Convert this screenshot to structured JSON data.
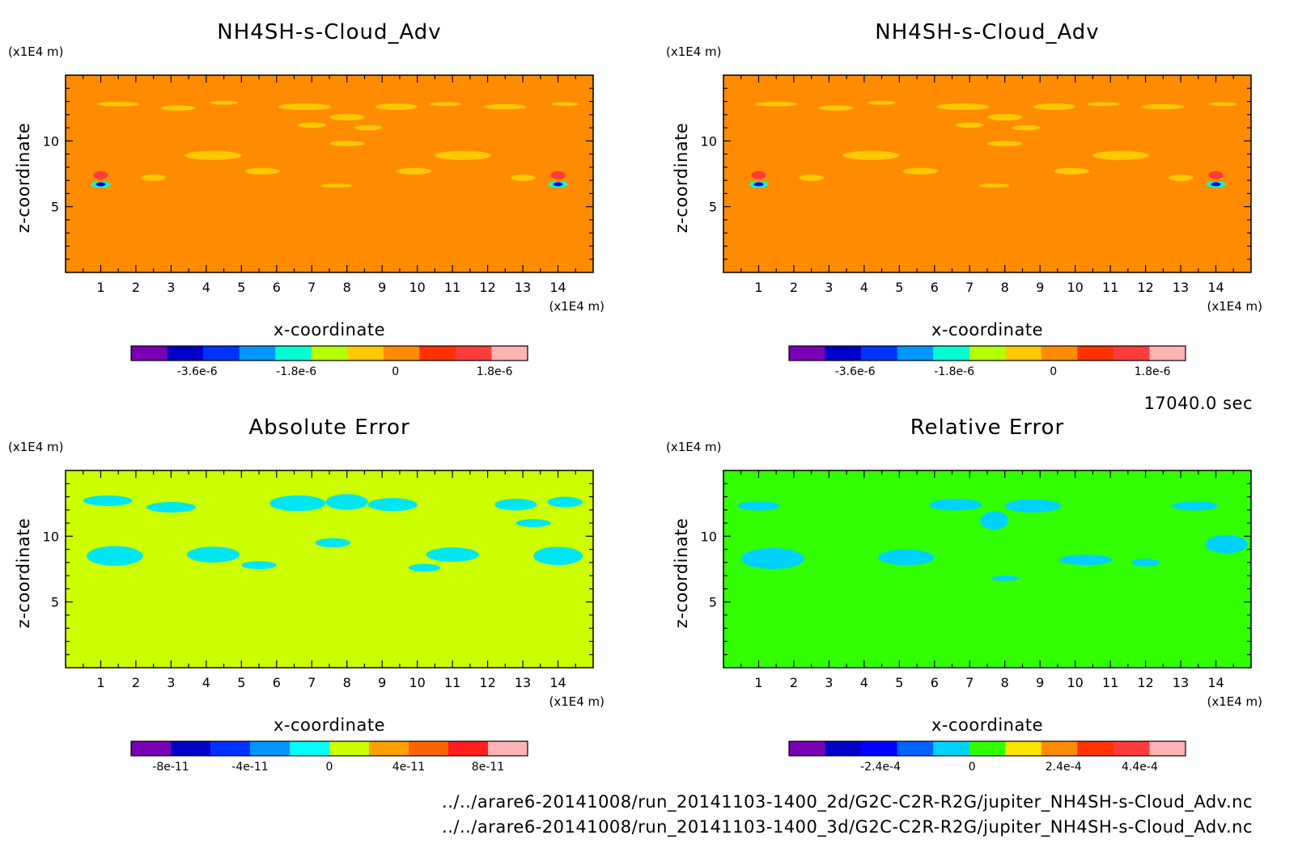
{
  "time_label": "17040.0 sec",
  "files": [
    "../../arare6-20141008/run_20141103-1400_2d/G2C-C2R-R2G/jupiter_NH4SH-s-Cloud_Adv.nc",
    "../../arare6-20141008/run_20141103-1400_3d/G2C-C2R-R2G/jupiter_NH4SH-s-Cloud_Adv.nc"
  ],
  "chart_data": [
    {
      "type": "heatmap",
      "title": "NH4SH-s-Cloud_Adv",
      "xlabel": "x-coordinate",
      "ylabel": "z-coordinate",
      "x_unit": "(x1E4 m)",
      "y_unit": "(x1E4 m)",
      "xlim": [
        0,
        15
      ],
      "ylim": [
        0,
        15
      ],
      "x_ticks": [
        "1",
        "2",
        "3",
        "4",
        "5",
        "6",
        "7",
        "8",
        "9",
        "10",
        "11",
        "12",
        "13",
        "14"
      ],
      "y_ticks": [
        "5",
        "10"
      ],
      "background_color": "#ff8c00",
      "colorbar": {
        "colors": [
          "#7a00b4",
          "#0000c8",
          "#0032ff",
          "#0096ff",
          "#00ffd2",
          "#b4ff00",
          "#ffc800",
          "#ff8c00",
          "#ff3200",
          "#ff3c3c",
          "#ffb4b4"
        ],
        "tick_labels": [
          "-3.6e-6",
          "-1.8e-6",
          "0",
          "1.8e-6"
        ],
        "tick_values": [
          -3.6e-06,
          -1.8e-06,
          0,
          1.8e-06
        ],
        "range": [
          -4.8e-06,
          2.4e-06
        ]
      }
    },
    {
      "type": "heatmap",
      "title": "NH4SH-s-Cloud_Adv",
      "xlabel": "x-coordinate",
      "ylabel": "z-coordinate",
      "x_unit": "(x1E4 m)",
      "y_unit": "(x1E4 m)",
      "xlim": [
        0,
        15
      ],
      "ylim": [
        0,
        15
      ],
      "x_ticks": [
        "1",
        "2",
        "3",
        "4",
        "5",
        "6",
        "7",
        "8",
        "9",
        "10",
        "11",
        "12",
        "13",
        "14"
      ],
      "y_ticks": [
        "5",
        "10"
      ],
      "background_color": "#ff8c00",
      "colorbar": {
        "colors": [
          "#7a00b4",
          "#0000c8",
          "#0032ff",
          "#0096ff",
          "#00ffd2",
          "#b4ff00",
          "#ffc800",
          "#ff8c00",
          "#ff3200",
          "#ff3c3c",
          "#ffb4b4"
        ],
        "tick_labels": [
          "-3.6e-6",
          "-1.8e-6",
          "0",
          "1.8e-6"
        ],
        "tick_values": [
          -3.6e-06,
          -1.8e-06,
          0,
          1.8e-06
        ],
        "range": [
          -4.8e-06,
          2.4e-06
        ]
      }
    },
    {
      "type": "heatmap",
      "title": "Absolute Error",
      "xlabel": "x-coordinate",
      "ylabel": "z-coordinate",
      "x_unit": "(x1E4 m)",
      "y_unit": "(x1E4 m)",
      "xlim": [
        0,
        15
      ],
      "ylim": [
        0,
        15
      ],
      "x_ticks": [
        "1",
        "2",
        "3",
        "4",
        "5",
        "6",
        "7",
        "8",
        "9",
        "10",
        "11",
        "12",
        "13",
        "14"
      ],
      "y_ticks": [
        "5",
        "10"
      ],
      "background_color": "#ccff00",
      "colorbar": {
        "colors": [
          "#7a00b4",
          "#0000c8",
          "#0032ff",
          "#0096ff",
          "#00ffff",
          "#ccff00",
          "#ffa000",
          "#ff6400",
          "#ff1e1e",
          "#ffb4b4"
        ],
        "tick_labels": [
          "-8e-11",
          "-4e-11",
          "0",
          "4e-11",
          "8e-11"
        ],
        "tick_values": [
          -8e-11,
          -4e-11,
          0,
          4e-11,
          8e-11
        ],
        "range": [
          -1e-10,
          1e-10
        ]
      }
    },
    {
      "type": "heatmap",
      "title": "Relative Error",
      "xlabel": "x-coordinate",
      "ylabel": "z-coordinate",
      "x_unit": "(x1E4 m)",
      "y_unit": "(x1E4 m)",
      "xlim": [
        0,
        15
      ],
      "ylim": [
        0,
        15
      ],
      "x_ticks": [
        "1",
        "2",
        "3",
        "4",
        "5",
        "6",
        "7",
        "8",
        "9",
        "10",
        "11",
        "12",
        "13",
        "14"
      ],
      "y_ticks": [
        "5",
        "10"
      ],
      "background_color": "#32ff00",
      "colorbar": {
        "colors": [
          "#7a00b4",
          "#0000c8",
          "#0000ff",
          "#0064ff",
          "#00d2ff",
          "#32ff00",
          "#ffe600",
          "#ff8c00",
          "#ff3200",
          "#ff3c3c",
          "#ffb4b4"
        ],
        "tick_labels": [
          "-2.4e-4",
          "0",
          "2.4e-4",
          "4.4e-4"
        ],
        "tick_values": [
          -0.00024,
          0,
          0.00024,
          0.00044
        ],
        "range": [
          -0.00048,
          0.00056
        ]
      }
    }
  ]
}
